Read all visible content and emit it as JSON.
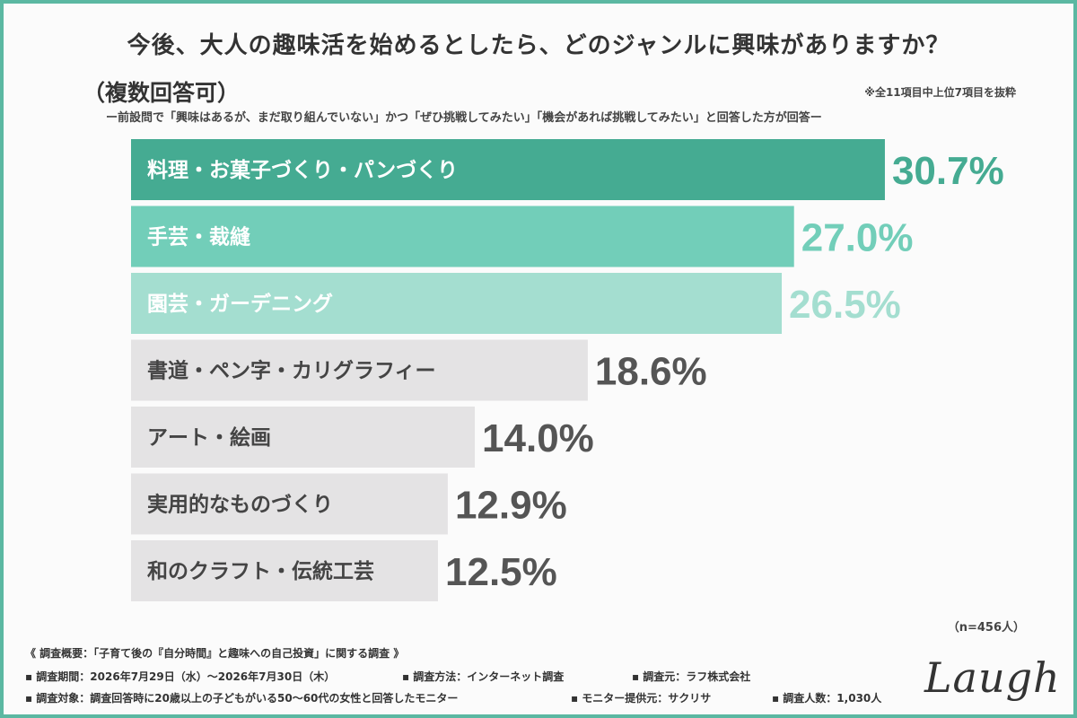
{
  "header": {
    "title": "今後、大人の趣味活を始めるとしたら、どのジャンルに興味がありますか？",
    "subtitle": "（複数回答可）",
    "note": "※全11項目中上位7項目を抜粋",
    "description": "ー前設問で「興味はあるが、まだ取り組んでいない」かつ「ぜひ挑戦してみたい」「機会があれば挑戦してみたい」と回答した方が回答ー"
  },
  "chart_data": {
    "type": "bar",
    "orientation": "horizontal",
    "categories": [
      "料理・お菓子づくり・パンづくり",
      "手芸・裁縫",
      "園芸・ガーデニング",
      "書道・ペン字・カリグラフィー",
      "アート・絵画",
      "実用的なものづくり",
      "和のクラフト・伝統工芸"
    ],
    "values": [
      30.7,
      27.0,
      26.5,
      18.6,
      14.0,
      12.9,
      12.5
    ],
    "value_labels": [
      "30.7%",
      "27.0%",
      "26.5%",
      "18.6%",
      "14.0%",
      "12.9%",
      "12.5%"
    ],
    "bar_colors": [
      "#45ab92",
      "#72ceb9",
      "#a4ded0",
      "#e4e3e4",
      "#e4e3e4",
      "#e4e3e4",
      "#e4e3e4"
    ],
    "value_colors": [
      "#45ab92",
      "#72ceb9",
      "#a4ded0",
      "#555555",
      "#555555",
      "#555555",
      "#555555"
    ],
    "label_colors": [
      "#ffffff",
      "#ffffff",
      "#ffffff",
      "#444444",
      "#444444",
      "#444444",
      "#444444"
    ],
    "xlim": [
      0,
      35
    ],
    "grid": false,
    "legend": "none"
  },
  "sample_size": "（n=456人）",
  "footer": {
    "overview": "《 調査概要：「子育て後の『自分時間』と趣味への自己投資」に関する調査 》",
    "period": "▪ 調査期間：2026年7月29日（水）～2026年7月30日（木）",
    "method": "▪ 調査方法：インターネット調査",
    "organizer": "▪ 調査元：ラフ株式会社",
    "target": "▪ 調査対象：調査回答時に20歳以上の子どもがいる50〜60代の女性と回答したモニター",
    "provider": "▪ モニター提供元：サクリサ",
    "respondents": "▪ 調査人数：1,030人"
  },
  "logo": "Laugh"
}
